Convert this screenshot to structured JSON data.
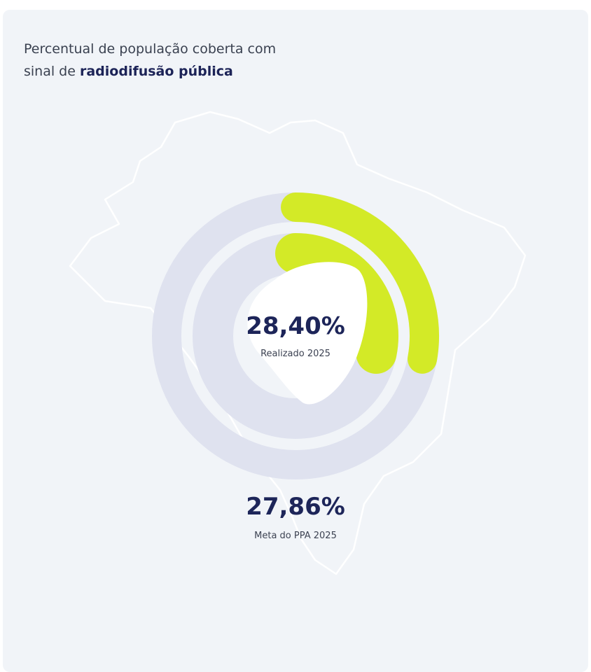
{
  "title": {
    "prefix": "Percentual de população coberta com",
    "line2_prefix": "sinal de ",
    "bold": "radiodifusão pública"
  },
  "colors": {
    "background": "#f1f4f8",
    "track": "#dfe2ef",
    "accent": "#d3ea27",
    "text_dark": "#1d2559",
    "map_outline": "#ffffff"
  },
  "chart_data": {
    "type": "radial-progress",
    "rings": [
      {
        "ring": "outer",
        "value": 27.86,
        "max": 100,
        "display": "27,86%",
        "label": "Meta do PPA 2025"
      },
      {
        "ring": "inner",
        "value": 28.4,
        "max": 100,
        "display": "28,40%",
        "label": "Realizado 2025"
      }
    ]
  }
}
